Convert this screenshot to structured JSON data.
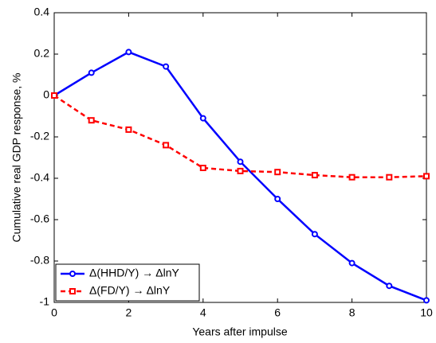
{
  "chart_data": {
    "type": "line",
    "x_label": "Years after impulse",
    "y_label": "Cumulative real GDP response, %",
    "x": [
      0,
      1,
      2,
      3,
      4,
      5,
      6,
      7,
      8,
      9,
      10
    ],
    "series": [
      {
        "name": "Δ(HHD/Y) → ΔlnY",
        "color": "#0000ff",
        "dash": false,
        "marker": "circle",
        "values": [
          0,
          0.11,
          0.21,
          0.14,
          -0.11,
          -0.32,
          -0.5,
          -0.67,
          -0.81,
          -0.92,
          -0.99
        ]
      },
      {
        "name": "Δ(FD/Y) → ΔlnY",
        "color": "#ff0000",
        "dash": true,
        "marker": "square",
        "values": [
          0,
          -0.12,
          -0.165,
          -0.24,
          -0.35,
          -0.365,
          -0.37,
          -0.385,
          -0.395,
          -0.395,
          -0.39
        ]
      }
    ],
    "xlim": [
      0,
      10
    ],
    "xticks": [
      0,
      2,
      4,
      6,
      8,
      10
    ],
    "ylim": [
      -1,
      0.4
    ],
    "yticks": [
      -1,
      -0.8,
      -0.6,
      -0.4,
      -0.2,
      0,
      0.2,
      0.4
    ],
    "grid": false,
    "legend": "lower-left"
  }
}
